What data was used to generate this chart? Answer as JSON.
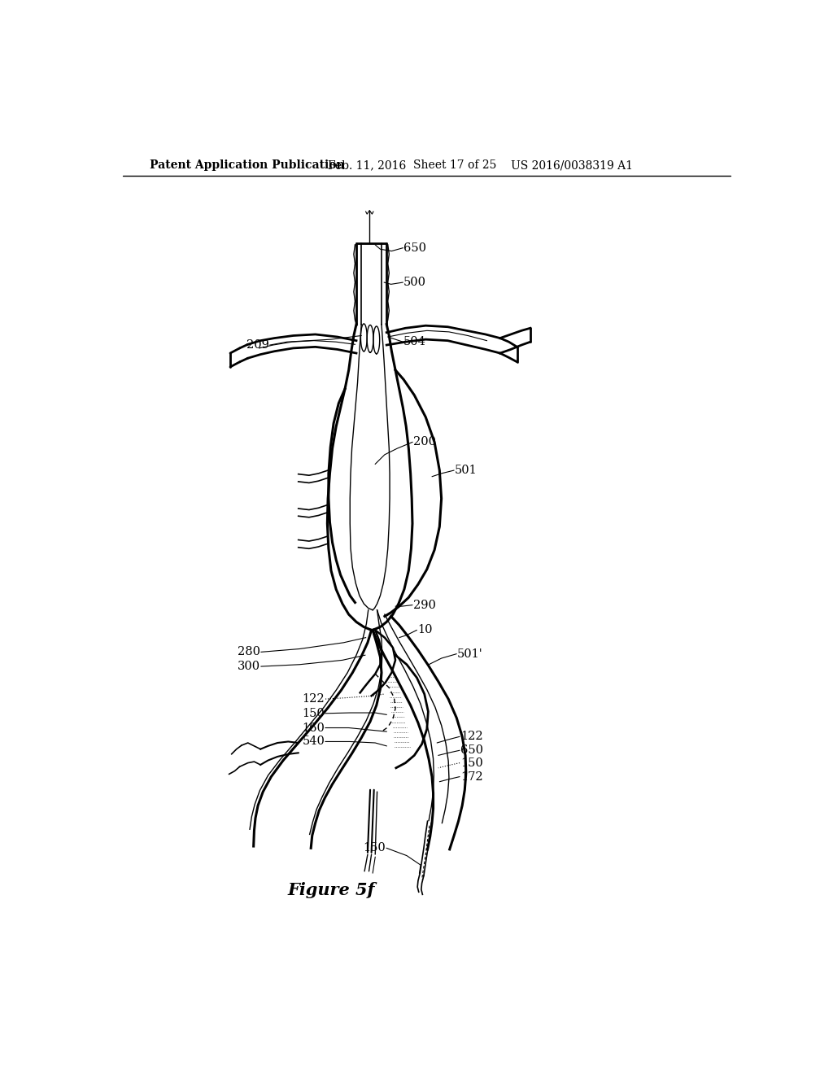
{
  "title": "Patent Application Publication",
  "date": "Feb. 11, 2016",
  "sheet": "Sheet 17 of 25",
  "patent_num": "US 2016/0038319 A1",
  "figure_label": "Figure 5f",
  "bg": "#ffffff"
}
